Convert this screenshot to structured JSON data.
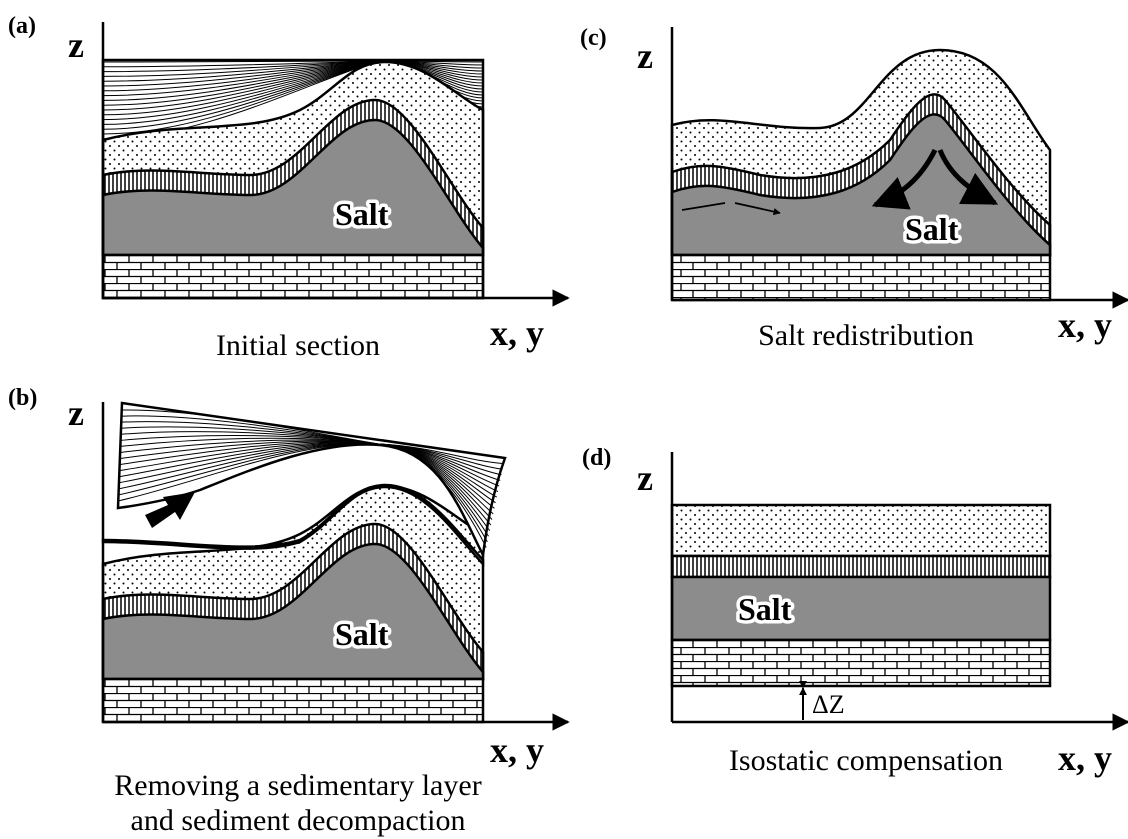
{
  "panels": [
    {
      "label": "(a)",
      "z_axis": "z",
      "x_axis": "x, y",
      "salt": "Salt",
      "caption": [
        "Initial section"
      ]
    },
    {
      "label": "(b)",
      "z_axis": "z",
      "x_axis": "x, y",
      "salt": "Salt",
      "caption": [
        "Removing a sedimentary layer",
        "and sediment decompaction"
      ]
    },
    {
      "label": "(c)",
      "z_axis": "z",
      "x_axis": "x, y",
      "salt": "Salt",
      "caption": [
        "Salt redistribution"
      ]
    },
    {
      "label": "(d)",
      "z_axis": "z",
      "x_axis": "x, y",
      "salt": "Salt",
      "caption": [
        "Isostatic compensation"
      ],
      "delta_z": "ΔZ"
    }
  ]
}
